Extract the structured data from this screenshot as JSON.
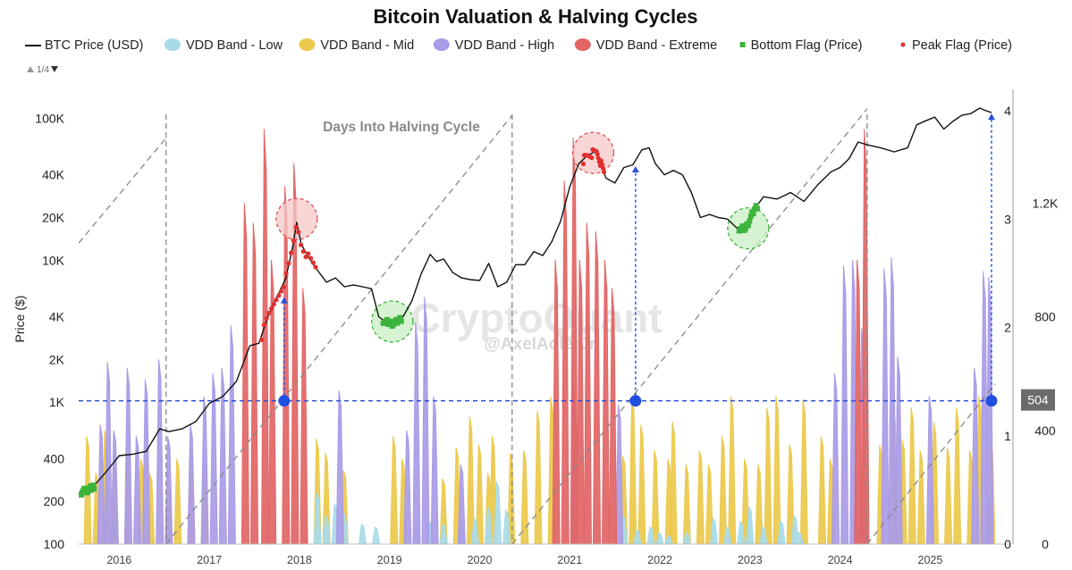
{
  "chart_data": {
    "type": "area",
    "title": "Bitcoin Valuation & Halving Cycles",
    "ylabel": "Price ($)",
    "watermark": "CryptoQuant",
    "watermark_handle": "@AxelAdlerJr",
    "legend_page": "1/4",
    "legend": [
      {
        "label": "BTC Price (USD)",
        "color": "#111111",
        "marker": "line"
      },
      {
        "label": "VDD Band - Low",
        "color": "#a8dbe8",
        "marker": "blob"
      },
      {
        "label": "VDD Band - Mid",
        "color": "#ecc94b",
        "marker": "blob"
      },
      {
        "label": "VDD Band - High",
        "color": "#a99be6",
        "marker": "blob"
      },
      {
        "label": "VDD Band - Extreme",
        "color": "#e26565",
        "marker": "blob"
      },
      {
        "label": "Bottom Flag (Price)",
        "color": "#3cb43c",
        "marker": "square"
      },
      {
        "label": "Peak Flag (Price)",
        "color": "#e03030",
        "marker": "dot"
      }
    ],
    "x_ticks": [
      "2016",
      "2017",
      "2018",
      "2019",
      "2020",
      "2021",
      "2022",
      "2023",
      "2024",
      "2025"
    ],
    "x_range": [
      2015.55,
      2025.72
    ],
    "y_left": {
      "scale": "log",
      "range": [
        100,
        160000
      ],
      "ticks": [
        "100K",
        "40K",
        "20K",
        "10K",
        "4K",
        "2K",
        "1K",
        "400",
        "200",
        "100"
      ],
      "tick_values": [
        100000,
        40000,
        20000,
        10000,
        4000,
        2000,
        1000,
        400,
        200,
        100
      ]
    },
    "y_right_cycle": {
      "range": [
        0,
        4.2
      ],
      "ticks": [
        "4",
        "3",
        "2",
        "1",
        "0"
      ],
      "tick_values": [
        4,
        3,
        2,
        1,
        0
      ]
    },
    "y_right_vdd": {
      "range": [
        0,
        1600
      ],
      "ticks": [
        "1.2K",
        "800",
        "400",
        "0"
      ],
      "tick_values": [
        1200,
        800,
        400,
        0
      ]
    },
    "reference_line": {
      "label": "504",
      "vdd_value": 504
    },
    "annotation": "Days Into Halving Cycle",
    "halvings": [
      2016.52,
      2020.36,
      2024.3
    ],
    "cycle_lines": [
      {
        "start": 2015.55,
        "start_value": 2.78,
        "end": 2016.52,
        "end_value": 3.75
      },
      {
        "start": 2016.52,
        "start_value": 0,
        "end": 2020.36,
        "end_value": 3.96
      },
      {
        "start": 2020.36,
        "start_value": 0,
        "end": 2024.3,
        "end_value": 4.02
      },
      {
        "start": 2024.3,
        "start_value": 0,
        "end": 2025.72,
        "end_value": 1.48
      }
    ],
    "bottom_flags": [
      {
        "x_start": 2015.58,
        "x_end": 2015.72
      },
      {
        "x_start": 2018.93,
        "x_end": 2019.13
      },
      {
        "x_start": 2022.88,
        "x_end": 2023.08
      }
    ],
    "peak_flags": [
      {
        "x_start": 2017.58,
        "x_end": 2018.18
      },
      {
        "x_start": 2021.15,
        "x_end": 2021.38
      }
    ],
    "highlight_circles": [
      {
        "kind": "peak",
        "x": 2017.97,
        "price": 19500
      },
      {
        "kind": "bottom",
        "x": 2019.03,
        "price": 3700
      },
      {
        "kind": "peak",
        "x": 2021.26,
        "price": 57000
      },
      {
        "kind": "bottom",
        "x": 2022.98,
        "price": 16800
      }
    ],
    "crossing_markers": [
      {
        "x": 2017.83,
        "vdd": 504,
        "arrow_to_price": 5500
      },
      {
        "x": 2021.73,
        "vdd": 504,
        "arrow_to_price": 46000
      },
      {
        "x": 2025.68,
        "vdd": 504,
        "arrow_to_price": 108000
      }
    ],
    "series": [
      {
        "name": "BTC Price (USD)",
        "x": [
          2015.55,
          2015.7,
          2015.85,
          2016.0,
          2016.15,
          2016.3,
          2016.45,
          2016.55,
          2016.7,
          2016.85,
          2017.0,
          2017.15,
          2017.3,
          2017.45,
          2017.55,
          2017.65,
          2017.75,
          2017.85,
          2017.92,
          2017.97,
          2018.02,
          2018.1,
          2018.2,
          2018.3,
          2018.4,
          2018.5,
          2018.6,
          2018.7,
          2018.8,
          2018.88,
          2018.95,
          2019.05,
          2019.15,
          2019.25,
          2019.35,
          2019.45,
          2019.52,
          2019.6,
          2019.7,
          2019.8,
          2019.9,
          2020.0,
          2020.1,
          2020.2,
          2020.3,
          2020.4,
          2020.5,
          2020.6,
          2020.7,
          2020.8,
          2020.9,
          2021.0,
          2021.1,
          2021.2,
          2021.3,
          2021.4,
          2021.5,
          2021.6,
          2021.7,
          2021.8,
          2021.88,
          2021.95,
          2022.05,
          2022.15,
          2022.25,
          2022.35,
          2022.45,
          2022.55,
          2022.65,
          2022.75,
          2022.85,
          2022.95,
          2023.05,
          2023.15,
          2023.3,
          2023.45,
          2023.6,
          2023.75,
          2023.9,
          2024.0,
          2024.1,
          2024.2,
          2024.3,
          2024.45,
          2024.6,
          2024.75,
          2024.85,
          2024.95,
          2025.05,
          2025.15,
          2025.25,
          2025.35,
          2025.45,
          2025.55,
          2025.62,
          2025.68
        ],
        "values": [
          230,
          250,
          320,
          420,
          430,
          450,
          650,
          620,
          650,
          730,
          980,
          1100,
          1400,
          2500,
          2600,
          4000,
          5500,
          7500,
          12000,
          18500,
          13000,
          10500,
          8500,
          7000,
          7500,
          6500,
          6700,
          6500,
          6300,
          4000,
          3700,
          3600,
          4000,
          5200,
          8000,
          11000,
          9800,
          10200,
          8200,
          7500,
          7300,
          7200,
          9500,
          6500,
          7000,
          9300,
          9300,
          11500,
          10800,
          13500,
          19000,
          33000,
          48000,
          55000,
          59000,
          38000,
          35000,
          45000,
          47000,
          60000,
          62000,
          48000,
          40000,
          43000,
          40000,
          30000,
          20000,
          21000,
          20000,
          19500,
          17000,
          16800,
          23000,
          28000,
          27000,
          30000,
          26000,
          34000,
          42000,
          45000,
          52000,
          68000,
          65000,
          62000,
          58000,
          62000,
          90000,
          96000,
          102000,
          84000,
          95000,
          105000,
          108000,
          118000,
          113000,
          110000
        ]
      }
    ],
    "vdd_bands": [
      {
        "name": "VDD Band - Low",
        "color": "#a8dbe8",
        "points": [
          [
            2018.2,
            180
          ],
          [
            2018.3,
            100
          ],
          [
            2018.4,
            140
          ],
          [
            2018.5,
            110
          ],
          [
            2018.7,
            70
          ],
          [
            2018.85,
            60
          ],
          [
            2019.3,
            60
          ],
          [
            2019.45,
            80
          ],
          [
            2019.6,
            70
          ],
          [
            2019.8,
            60
          ],
          [
            2019.95,
            90
          ],
          [
            2020.1,
            130
          ],
          [
            2020.2,
            220
          ],
          [
            2020.3,
            120
          ],
          [
            2021.6,
            100
          ],
          [
            2021.75,
            50
          ],
          [
            2021.9,
            60
          ],
          [
            2022.0,
            40
          ],
          [
            2022.1,
            30
          ],
          [
            2022.3,
            40
          ],
          [
            2022.6,
            90
          ],
          [
            2022.75,
            60
          ],
          [
            2022.9,
            80
          ],
          [
            2023.0,
            130
          ],
          [
            2023.15,
            60
          ],
          [
            2023.35,
            80
          ],
          [
            2023.5,
            100
          ],
          [
            2023.55,
            40
          ]
        ]
      },
      {
        "name": "VDD Band - Mid",
        "color": "#ecc94b",
        "points": [
          [
            2015.65,
            380
          ],
          [
            2015.75,
            250
          ],
          [
            2015.85,
            400
          ],
          [
            2015.95,
            280
          ],
          [
            2016.1,
            320
          ],
          [
            2016.25,
            300
          ],
          [
            2016.35,
            250
          ],
          [
            2016.55,
            200
          ],
          [
            2016.65,
            300
          ],
          [
            2016.8,
            350
          ],
          [
            2016.95,
            280
          ],
          [
            2018.2,
            370
          ],
          [
            2018.3,
            320
          ],
          [
            2018.5,
            260
          ],
          [
            2019.05,
            380
          ],
          [
            2019.15,
            300
          ],
          [
            2019.6,
            230
          ],
          [
            2019.75,
            340
          ],
          [
            2019.9,
            450
          ],
          [
            2020.0,
            350
          ],
          [
            2020.1,
            250
          ],
          [
            2020.15,
            380
          ],
          [
            2020.35,
            320
          ],
          [
            2020.5,
            330
          ],
          [
            2020.65,
            470
          ],
          [
            2020.8,
            520
          ],
          [
            2021.6,
            310
          ],
          [
            2021.7,
            520
          ],
          [
            2021.8,
            420
          ],
          [
            2021.95,
            330
          ],
          [
            2022.1,
            300
          ],
          [
            2022.15,
            430
          ],
          [
            2022.3,
            280
          ],
          [
            2022.45,
            330
          ],
          [
            2022.55,
            280
          ],
          [
            2022.7,
            380
          ],
          [
            2022.8,
            520
          ],
          [
            2022.95,
            300
          ],
          [
            2023.1,
            280
          ],
          [
            2023.2,
            480
          ],
          [
            2023.3,
            520
          ],
          [
            2023.45,
            350
          ],
          [
            2023.6,
            510
          ],
          [
            2023.8,
            380
          ],
          [
            2023.9,
            300
          ],
          [
            2024.45,
            350
          ],
          [
            2024.6,
            480
          ],
          [
            2024.7,
            370
          ],
          [
            2024.8,
            480
          ],
          [
            2024.9,
            330
          ],
          [
            2025.05,
            430
          ],
          [
            2025.2,
            340
          ],
          [
            2025.3,
            480
          ],
          [
            2025.45,
            330
          ],
          [
            2025.55,
            520
          ],
          [
            2025.68,
            360
          ]
        ]
      },
      {
        "name": "VDD Band - High",
        "color": "#a99be6",
        "points": [
          [
            2015.8,
            420
          ],
          [
            2015.88,
            640
          ],
          [
            2015.95,
            400
          ],
          [
            2016.1,
            620
          ],
          [
            2016.2,
            380
          ],
          [
            2016.3,
            580
          ],
          [
            2016.45,
            650
          ],
          [
            2016.55,
            380
          ],
          [
            2016.8,
            420
          ],
          [
            2016.95,
            520
          ],
          [
            2017.05,
            600
          ],
          [
            2017.15,
            620
          ],
          [
            2017.25,
            770
          ],
          [
            2018.45,
            540
          ],
          [
            2019.2,
            400
          ],
          [
            2019.3,
            780
          ],
          [
            2019.4,
            870
          ],
          [
            2019.5,
            520
          ],
          [
            2019.8,
            280
          ],
          [
            2021.05,
            560
          ],
          [
            2021.55,
            490
          ],
          [
            2023.95,
            600
          ],
          [
            2024.05,
            980
          ],
          [
            2024.15,
            1000
          ],
          [
            2024.25,
            760
          ],
          [
            2024.5,
            970
          ],
          [
            2024.58,
            1010
          ],
          [
            2024.65,
            660
          ],
          [
            2025.0,
            520
          ],
          [
            2025.5,
            620
          ],
          [
            2025.6,
            960
          ],
          [
            2025.66,
            940
          ]
        ]
      },
      {
        "name": "VDD Band - Extreme",
        "color": "#e26565",
        "points": [
          [
            2017.4,
            1200
          ],
          [
            2017.5,
            1130
          ],
          [
            2017.62,
            1460
          ],
          [
            2017.7,
            1000
          ],
          [
            2017.85,
            1260
          ],
          [
            2017.95,
            1340
          ],
          [
            2018.05,
            900
          ],
          [
            2020.85,
            1000
          ],
          [
            2020.95,
            1280
          ],
          [
            2021.05,
            1430
          ],
          [
            2021.12,
            1000
          ],
          [
            2021.2,
            1130
          ],
          [
            2021.3,
            1100
          ],
          [
            2021.4,
            1000
          ],
          [
            2021.48,
            900
          ],
          [
            2024.2,
            1000
          ],
          [
            2024.28,
            1460
          ]
        ]
      }
    ]
  }
}
